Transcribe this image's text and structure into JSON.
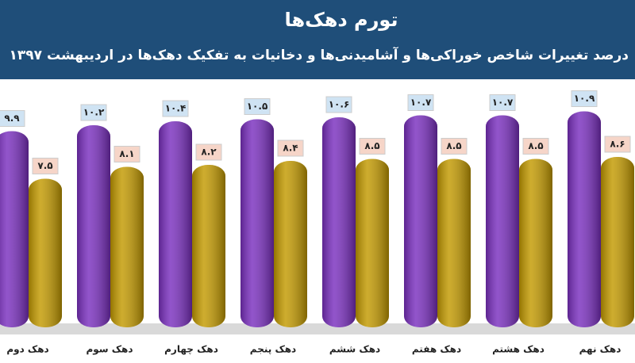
{
  "chart_data": {
    "type": "bar",
    "title": "تورم دهک‌ها",
    "subtitle": "درصد تغییرات شاخص خوراکی‌ها و آشامیدنی‌ها و دخانیات به تفکیک دهک‌ها در اردیبهشت ۱۳۹۷",
    "categories": [
      "دهک دوم",
      "دهک سوم",
      "دهک چهارم",
      "دهک پنجم",
      "دهک ششم",
      "دهک هفتم",
      "دهک هشتم",
      "دهک نهم"
    ],
    "series": [
      {
        "color": "#7a2fbf",
        "values": [
          9.9,
          10.2,
          10.4,
          10.5,
          10.6,
          10.7,
          10.7,
          10.9
        ],
        "value_labels": [
          "۹.۹",
          "۱۰.۲",
          "۱۰.۴",
          "۱۰.۵",
          "۱۰.۶",
          "۱۰.۷",
          "۱۰.۷",
          "۱۰.۹"
        ]
      },
      {
        "color": "#c39a00",
        "values": [
          7.5,
          8.1,
          8.2,
          8.4,
          8.5,
          8.5,
          8.5,
          8.6
        ],
        "value_labels": [
          "۷.۵",
          "۸.۱",
          "۸.۲",
          "۸.۴",
          "۸.۵",
          "۸.۵",
          "۸.۵",
          "۸.۶"
        ]
      }
    ]
  }
}
